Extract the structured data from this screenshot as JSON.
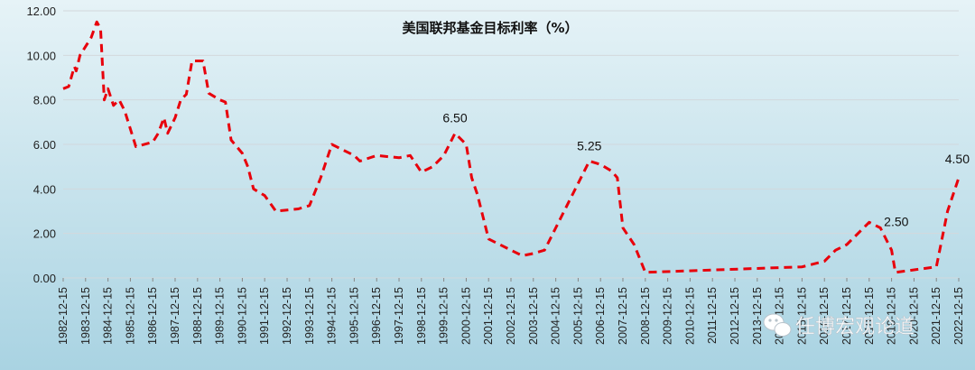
{
  "chart_data": {
    "type": "line",
    "title": "美国联邦基金目标利率（%）",
    "xlabel": "",
    "ylabel": "",
    "ylim": [
      0,
      12
    ],
    "yticks": [
      "0.00",
      "2.00",
      "4.00",
      "6.00",
      "8.00",
      "10.00",
      "12.00"
    ],
    "grid": true,
    "legend": "none",
    "line_color": "#e8000b",
    "line_style": "dashed",
    "background_gradient": [
      "#e6f3f7",
      "#a9d3e2"
    ],
    "x_axis_labels": [
      "1982-12-15",
      "1983-12-15",
      "1984-12-15",
      "1985-12-15",
      "1986-12-15",
      "1987-12-15",
      "1988-12-15",
      "1989-12-15",
      "1990-12-15",
      "1991-12-15",
      "1992-12-15",
      "1993-12-15",
      "1994-12-15",
      "1995-12-15",
      "1996-12-15",
      "1997-12-15",
      "1998-12-15",
      "1999-12-15",
      "2000-12-15",
      "2001-12-15",
      "2002-12-15",
      "2003-12-15",
      "2004-12-15",
      "2005-12-15",
      "2006-12-15",
      "2007-12-15",
      "2008-12-15",
      "2009-12-15",
      "2010-12-15",
      "2011-12-15",
      "2012-12-15",
      "2013-12-15",
      "2014-12-15",
      "2015-12-15",
      "2016-12-15",
      "2017-12-15",
      "2018-12-15",
      "2019-12-15",
      "2020-12-15",
      "2021-12-15",
      "2022-12-15"
    ],
    "series": [
      {
        "points": [
          [
            "1982-12-15",
            8.5
          ],
          [
            "1983-03-15",
            8.6
          ],
          [
            "1983-06-15",
            9.5
          ],
          [
            "1983-07-15",
            9.3
          ],
          [
            "1983-09-15",
            10.0
          ],
          [
            "1984-03-15",
            10.8
          ],
          [
            "1984-06-15",
            11.5
          ],
          [
            "1984-08-15",
            11.2
          ],
          [
            "1984-10-15",
            8.0
          ],
          [
            "1984-12-15",
            8.5
          ],
          [
            "1985-03-15",
            7.75
          ],
          [
            "1985-06-15",
            8.0
          ],
          [
            "1985-09-15",
            7.5
          ],
          [
            "1986-03-15",
            5.9
          ],
          [
            "1986-12-15",
            6.1
          ],
          [
            "1987-03-15",
            6.5
          ],
          [
            "1987-06-15",
            7.2
          ],
          [
            "1987-08-15",
            6.5
          ],
          [
            "1987-12-15",
            7.2
          ],
          [
            "1988-03-15",
            8.0
          ],
          [
            "1988-06-15",
            8.25
          ],
          [
            "1988-09-15",
            9.75
          ],
          [
            "1989-03-15",
            9.75
          ],
          [
            "1989-06-15",
            8.3
          ],
          [
            "1989-12-15",
            8.0
          ],
          [
            "1990-03-15",
            7.9
          ],
          [
            "1990-06-15",
            6.2
          ],
          [
            "1990-12-15",
            5.6
          ],
          [
            "1991-03-15",
            5.0
          ],
          [
            "1991-06-15",
            4.0
          ],
          [
            "1991-12-15",
            3.7
          ],
          [
            "1992-06-15",
            3.0
          ],
          [
            "1993-06-15",
            3.1
          ],
          [
            "1993-12-15",
            3.25
          ],
          [
            "1994-06-15",
            4.5
          ],
          [
            "1994-12-15",
            6.0
          ],
          [
            "1995-06-15",
            5.75
          ],
          [
            "1995-12-15",
            5.5
          ],
          [
            "1996-03-15",
            5.25
          ],
          [
            "1996-12-15",
            5.5
          ],
          [
            "1997-12-15",
            5.4
          ],
          [
            "1998-06-15",
            5.5
          ],
          [
            "1998-12-15",
            4.75
          ],
          [
            "1999-06-15",
            5.0
          ],
          [
            "1999-12-15",
            5.5
          ],
          [
            "2000-06-15",
            6.5
          ],
          [
            "2000-12-15",
            6.0
          ],
          [
            "2001-03-15",
            4.5
          ],
          [
            "2001-06-15",
            3.75
          ],
          [
            "2001-12-15",
            1.75
          ],
          [
            "2002-12-15",
            1.25
          ],
          [
            "2003-06-15",
            1.0
          ],
          [
            "2003-12-15",
            1.1
          ],
          [
            "2004-06-15",
            1.25
          ],
          [
            "2004-12-15",
            2.25
          ],
          [
            "2005-06-15",
            3.25
          ],
          [
            "2005-12-15",
            4.25
          ],
          [
            "2006-06-15",
            5.25
          ],
          [
            "2006-12-15",
            5.1
          ],
          [
            "2007-06-15",
            4.8
          ],
          [
            "2007-09-15",
            4.5
          ],
          [
            "2007-12-15",
            2.25
          ],
          [
            "2008-06-15",
            1.5
          ],
          [
            "2008-12-15",
            0.25
          ],
          [
            "2015-12-15",
            0.5
          ],
          [
            "2016-12-15",
            0.75
          ],
          [
            "2017-06-15",
            1.25
          ],
          [
            "2017-12-15",
            1.5
          ],
          [
            "2018-12-15",
            2.5
          ],
          [
            "2019-06-15",
            2.25
          ],
          [
            "2019-12-15",
            1.25
          ],
          [
            "2020-02-15",
            0.25
          ],
          [
            "2021-12-15",
            0.5
          ],
          [
            "2022-06-15",
            3.0
          ],
          [
            "2022-12-15",
            4.5
          ]
        ]
      }
    ],
    "annotations": [
      {
        "text": "6.50",
        "x": "2000-06-15",
        "y": 6.5
      },
      {
        "text": "5.25",
        "x": "2006-06-15",
        "y": 5.25
      },
      {
        "text": "2.50",
        "x": "2018-12-15",
        "y": 2.5
      },
      {
        "text": "4.50",
        "x": "2022-12-15",
        "y": 4.5
      }
    ]
  },
  "watermark": {
    "icon": "wechat-icon",
    "text": "任博宏观论道"
  }
}
